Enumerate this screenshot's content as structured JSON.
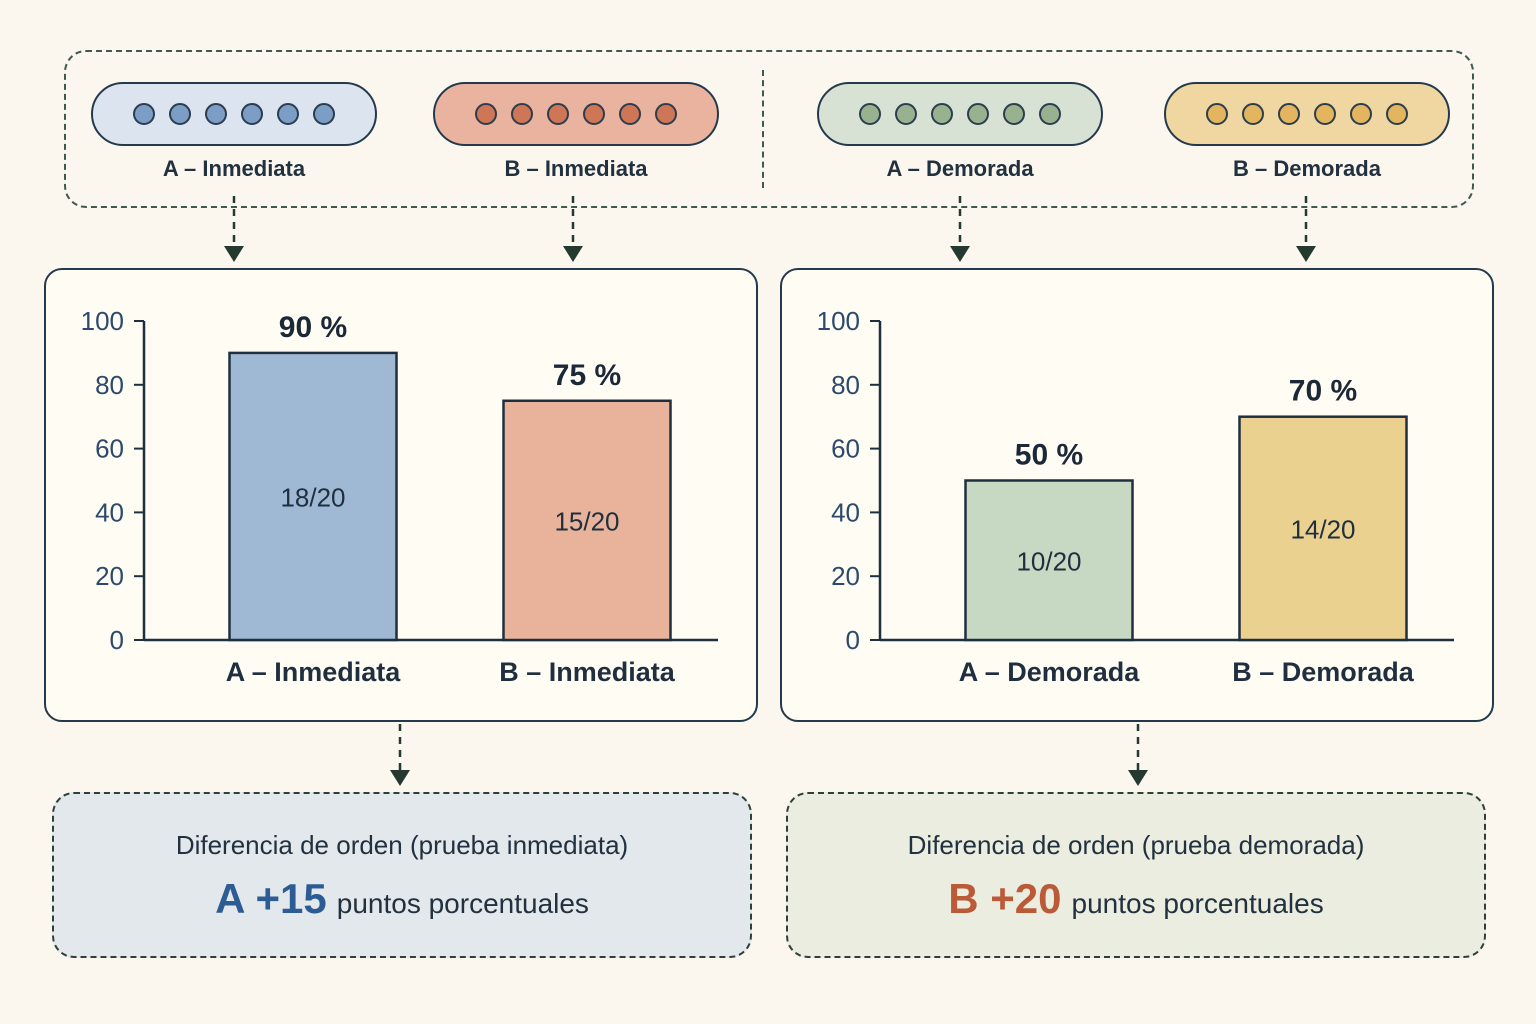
{
  "groups": [
    {
      "label": "A – Inmediata",
      "fill": "#dce5ef",
      "dot": "#7b9dc6"
    },
    {
      "label": "B – Inmediata",
      "fill": "#eab39f",
      "dot": "#cf7656"
    },
    {
      "label": "A – Demorada",
      "fill": "#d8e2d4",
      "dot": "#98b28f"
    },
    {
      "label": "B – Demorada",
      "fill": "#f0d6a0",
      "dot": "#e2b55e"
    }
  ],
  "chart_data": [
    {
      "type": "bar",
      "categories": [
        "A – Inmediata",
        "B – Inmediata"
      ],
      "values": [
        90,
        75
      ],
      "value_labels": [
        "90 %",
        "75 %"
      ],
      "inner_labels": [
        "18/20",
        "15/20"
      ],
      "colors": [
        "#9fb9d5",
        "#e9b29b"
      ],
      "ylim": [
        0,
        100
      ],
      "yticks": [
        "0",
        "20",
        "40",
        "60",
        "80",
        "100"
      ],
      "grid": false
    },
    {
      "type": "bar",
      "categories": [
        "A – Demorada",
        "B – Demorada"
      ],
      "values": [
        50,
        70
      ],
      "value_labels": [
        "50 %",
        "70 %"
      ],
      "inner_labels": [
        "10/20",
        "14/20"
      ],
      "colors": [
        "#c8d9c3",
        "#ebd190"
      ],
      "ylim": [
        0,
        100
      ],
      "yticks": [
        "0",
        "20",
        "40",
        "60",
        "80",
        "100"
      ],
      "grid": false
    }
  ],
  "summaries": [
    {
      "title": "Diferencia de orden (prueba inmediata)",
      "highlight": "A +15",
      "rest": "puntos porcentuales",
      "highlight_color": "#2d5c94",
      "bg": "#e3e8ec"
    },
    {
      "title": "Diferencia de orden (prueba demorada)",
      "highlight": "B +20",
      "rest": "puntos porcentuales",
      "highlight_color": "#bb5a38",
      "bg": "#eaeddf"
    }
  ]
}
